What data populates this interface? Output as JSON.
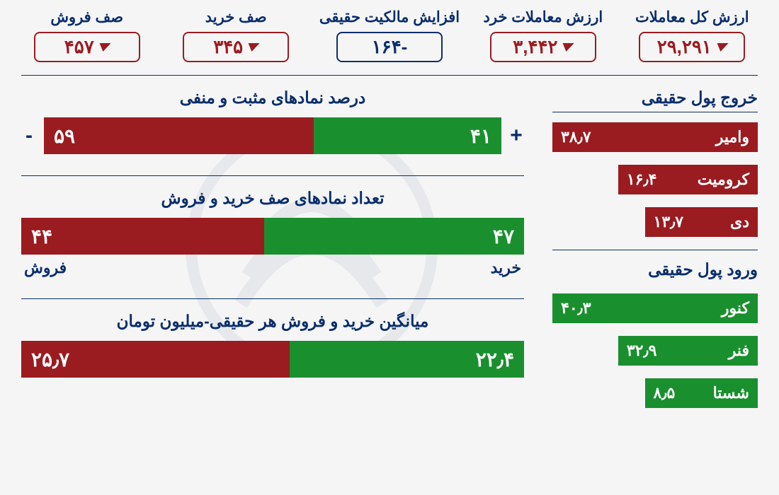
{
  "colors": {
    "navy": "#0a2e6b",
    "red": "#9a1b20",
    "green": "#1a8f2e",
    "bg": "#f5f5f5"
  },
  "top_metrics": [
    {
      "label": "ارزش کل معاملات",
      "value": "۲۹,۲۹۱",
      "dir": "down"
    },
    {
      "label": "ارزش معاملات خرد",
      "value": "۳,۴۴۲",
      "dir": "down"
    },
    {
      "label": "افزایش مالکیت حقیقی",
      "value": "-۱۶۴",
      "dir": "neutral"
    },
    {
      "label": "صف خرید",
      "value": "۳۴۵",
      "dir": "down"
    },
    {
      "label": "صف فروش",
      "value": "۴۵۷",
      "dir": "down"
    }
  ],
  "outflow": {
    "title": "خروج پول حقیقی",
    "items": [
      {
        "name": "وامیر",
        "value": "۳۸٫۷",
        "pct": 100
      },
      {
        "name": "کرومیت",
        "value": "۱۶٫۴",
        "pct": 68
      },
      {
        "name": "دی",
        "value": "۱۳٫۷",
        "pct": 55
      }
    ]
  },
  "inflow": {
    "title": "ورود پول حقیقی",
    "items": [
      {
        "name": "کنور",
        "value": "۴۰٫۳",
        "pct": 100
      },
      {
        "name": "فنر",
        "value": "۳۲٫۹",
        "pct": 68
      },
      {
        "name": "شستا",
        "value": "۸٫۵",
        "pct": 55
      }
    ]
  },
  "charts": {
    "pos_neg": {
      "title": "درصد نمادهای مثبت و منفی",
      "positive": 41,
      "positive_label": "۴۱",
      "pos_sign": "+",
      "negative": 59,
      "negative_label": "۵۹",
      "neg_sign": "-"
    },
    "queue": {
      "title": "تعداد نمادهای صف خرید و فروش",
      "buy": 47,
      "buy_label": "۴۷",
      "buy_sub": "خرید",
      "sell": 44,
      "sell_label": "۴۴",
      "sell_sub": "فروش"
    },
    "avg": {
      "title": "میانگین خرید و فروش هر حقیقی-میلیون تومان",
      "buy": 22.4,
      "buy_label": "۲۲٫۴",
      "sell": 25.7,
      "sell_label": "۲۵٫۷"
    }
  }
}
